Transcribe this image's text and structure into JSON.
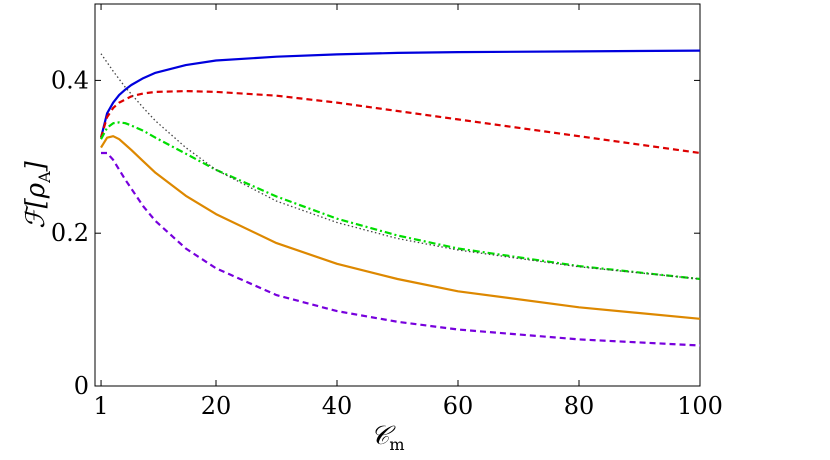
{
  "chart_data": {
    "type": "line",
    "xlabel": "𝒞",
    "xlabel_sub": "m",
    "ylabel": "ℱ[ρ",
    "ylabel_sub": "A",
    "ylabel_close": "]",
    "xlim": [
      0,
      100
    ],
    "ylim": [
      0,
      0.5
    ],
    "xticks": [
      1,
      20,
      40,
      60,
      80,
      100
    ],
    "xtick_labels": [
      "1",
      "20",
      "40",
      "60",
      "80",
      "100"
    ],
    "yticks": [
      0,
      0.2,
      0.4
    ],
    "ytick_labels": [
      "0",
      "0.2",
      "0.4"
    ],
    "grid": false,
    "legend": "none",
    "series": [
      {
        "color": "#0000dd",
        "dash": "solid",
        "x": [
          1,
          2,
          3,
          4,
          5,
          6,
          8,
          10,
          15,
          20,
          30,
          40,
          50,
          60,
          80,
          100
        ],
        "y": [
          0.325,
          0.357,
          0.371,
          0.381,
          0.388,
          0.394,
          0.403,
          0.41,
          0.42,
          0.426,
          0.431,
          0.434,
          0.436,
          0.437,
          0.438,
          0.439
        ]
      },
      {
        "color": "#dd0000",
        "dash": "dashed",
        "x": [
          1,
          2,
          3,
          4,
          6,
          8,
          10,
          15,
          20,
          30,
          40,
          50,
          60,
          80,
          100
        ],
        "y": [
          0.325,
          0.352,
          0.364,
          0.371,
          0.379,
          0.383,
          0.385,
          0.386,
          0.385,
          0.38,
          0.371,
          0.36,
          0.349,
          0.327,
          0.305
        ]
      },
      {
        "color": "#00dd00",
        "dash": "dashdot",
        "x": [
          1,
          2,
          3,
          4,
          5,
          6,
          8,
          10,
          15,
          20,
          30,
          40,
          50,
          60,
          80,
          100
        ],
        "y": [
          0.323,
          0.338,
          0.344,
          0.345,
          0.344,
          0.341,
          0.334,
          0.325,
          0.304,
          0.283,
          0.248,
          0.219,
          0.197,
          0.18,
          0.157,
          0.14
        ]
      },
      {
        "color": "#dd8800",
        "dash": "solid",
        "x": [
          1,
          2,
          3,
          4,
          6,
          8,
          10,
          15,
          20,
          30,
          40,
          50,
          60,
          80,
          100
        ],
        "y": [
          0.312,
          0.325,
          0.327,
          0.323,
          0.309,
          0.294,
          0.279,
          0.249,
          0.225,
          0.187,
          0.16,
          0.14,
          0.124,
          0.103,
          0.088
        ]
      },
      {
        "color": "#7700dd",
        "dash": "dashed",
        "x": [
          1,
          2,
          3,
          5,
          8,
          10,
          15,
          20,
          30,
          40,
          50,
          60,
          80,
          100
        ],
        "y": [
          0.305,
          0.305,
          0.296,
          0.27,
          0.235,
          0.216,
          0.18,
          0.154,
          0.119,
          0.098,
          0.084,
          0.074,
          0.061,
          0.053
        ]
      },
      {
        "color": "#444444",
        "dash": "dotted",
        "x": [
          1,
          3,
          5,
          8,
          10,
          15,
          20,
          30,
          40,
          50,
          60,
          80,
          100
        ],
        "y": [
          0.435,
          0.412,
          0.391,
          0.364,
          0.347,
          0.312,
          0.283,
          0.242,
          0.214,
          0.193,
          0.178,
          0.156,
          0.14
        ]
      }
    ]
  }
}
